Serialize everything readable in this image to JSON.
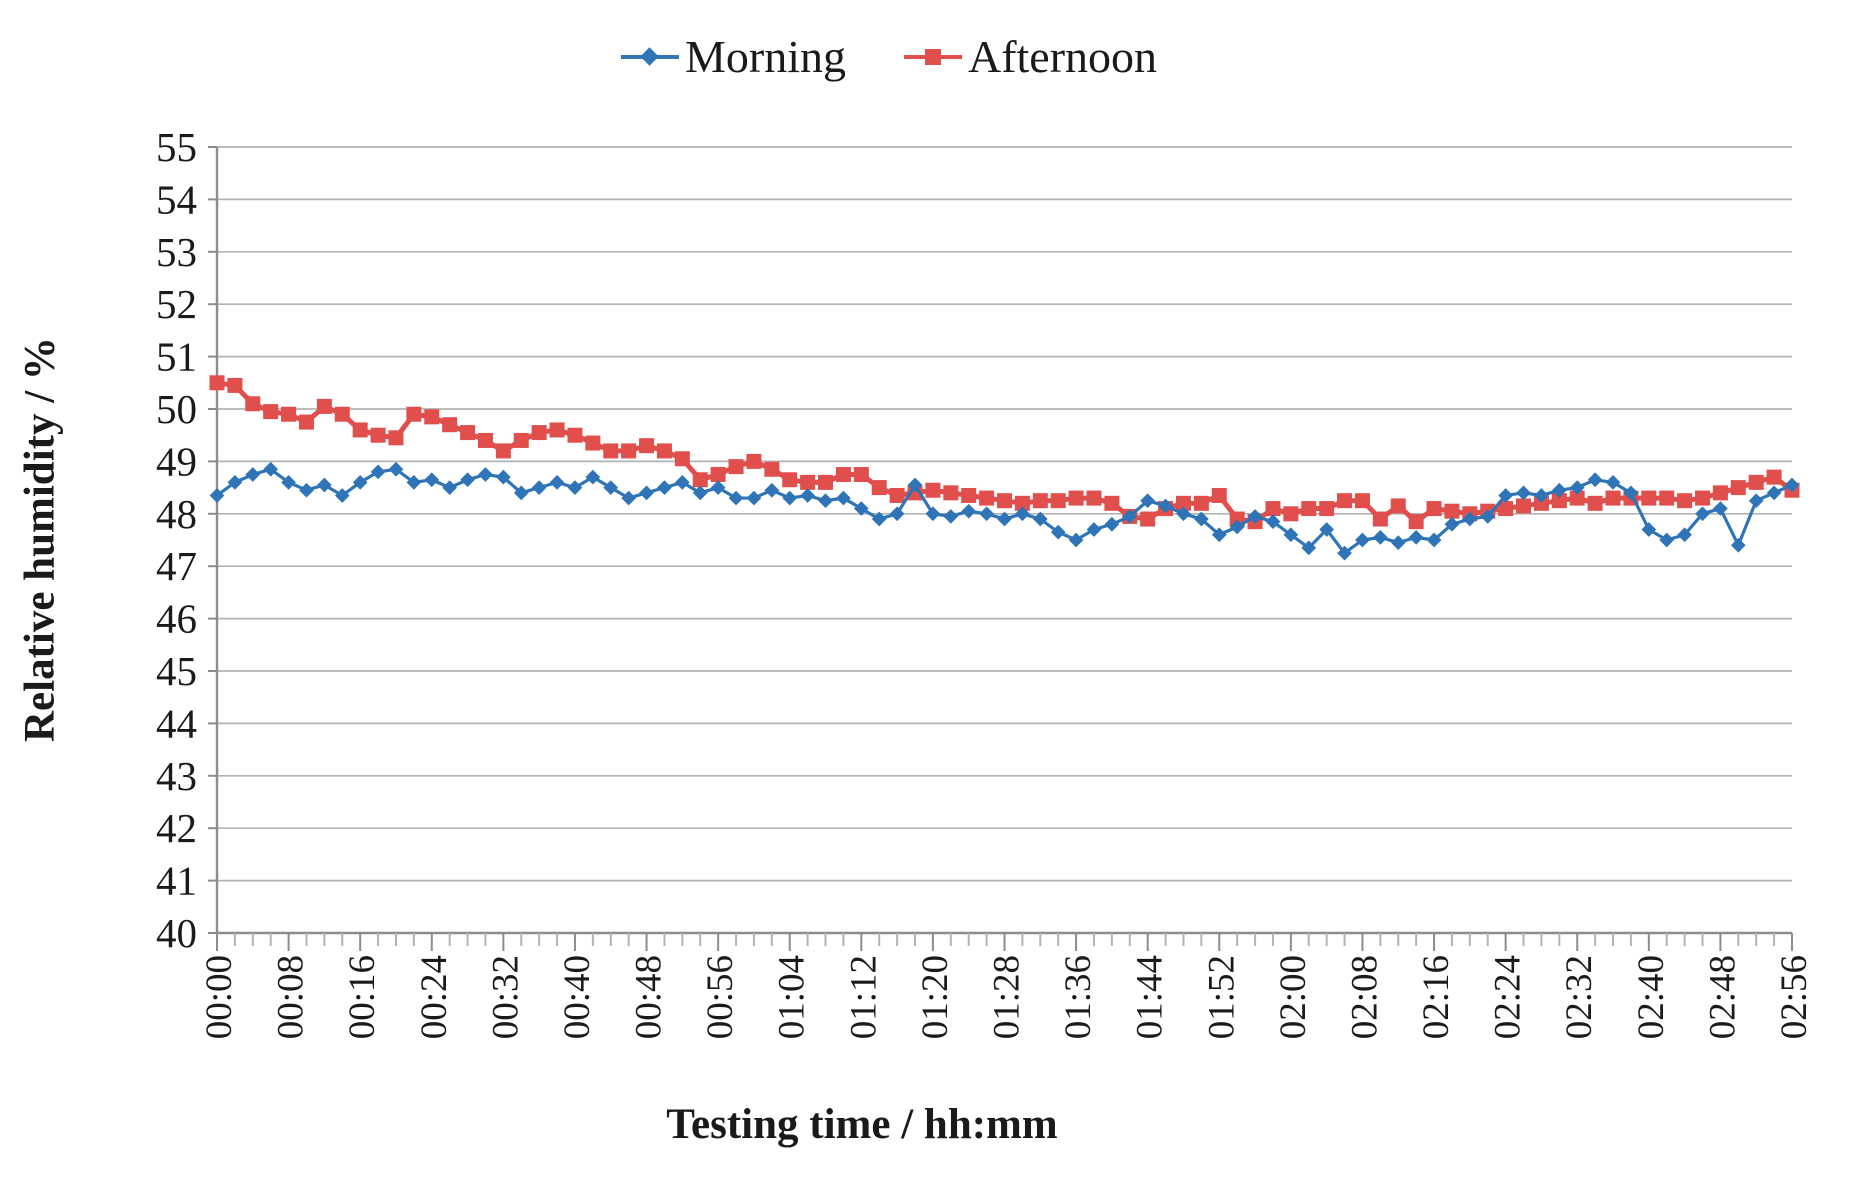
{
  "legend": {
    "items": [
      {
        "label": "Morning"
      },
      {
        "label": "Afternoon"
      }
    ]
  },
  "axes": {
    "x_title": "Testing time / hh:mm",
    "y_title": "Relative humidity / %"
  },
  "chart_data": {
    "type": "line",
    "title": "",
    "xlabel": "Testing time / hh:mm",
    "ylabel": "Relative humidity / %",
    "grid": "horizontal",
    "legend_position": "top-center",
    "ylim": [
      40,
      55
    ],
    "xlim_minutes": [
      0,
      176
    ],
    "y_ticks": [
      40,
      41,
      42,
      43,
      44,
      45,
      46,
      47,
      48,
      49,
      50,
      51,
      52,
      53,
      54,
      55
    ],
    "x_tick_interval_minutes": 8,
    "minor_tick_interval_minutes": 2,
    "x_tick_labels": [
      "00:00",
      "00:08",
      "00:16",
      "00:24",
      "00:32",
      "00:40",
      "00:48",
      "00:56",
      "01:04",
      "01:12",
      "01:20",
      "01:28",
      "01:36",
      "01:44",
      "01:52",
      "02:00",
      "02:08",
      "02:16",
      "02:24",
      "02:32",
      "02:40",
      "02:48",
      "02:56"
    ],
    "x_minutes": [
      0,
      2,
      4,
      6,
      8,
      10,
      12,
      14,
      16,
      18,
      20,
      22,
      24,
      26,
      28,
      30,
      32,
      34,
      36,
      38,
      40,
      42,
      44,
      46,
      48,
      50,
      52,
      54,
      56,
      58,
      60,
      62,
      64,
      66,
      68,
      70,
      72,
      74,
      76,
      78,
      80,
      82,
      84,
      86,
      88,
      90,
      92,
      94,
      96,
      98,
      100,
      102,
      104,
      106,
      108,
      110,
      112,
      114,
      116,
      118,
      120,
      122,
      124,
      126,
      128,
      130,
      132,
      134,
      136,
      138,
      140,
      142,
      144,
      146,
      148,
      150,
      152,
      154,
      156,
      158,
      160,
      162,
      164,
      166,
      168,
      170,
      172,
      174,
      176
    ],
    "series": [
      {
        "name": "Afternoon",
        "marker": "square",
        "color": "#e04f4c",
        "values": [
          50.5,
          50.45,
          50.1,
          49.95,
          49.9,
          49.75,
          50.05,
          49.9,
          49.6,
          49.5,
          49.45,
          49.9,
          49.85,
          49.7,
          49.55,
          49.4,
          49.2,
          49.4,
          49.55,
          49.6,
          49.5,
          49.35,
          49.2,
          49.2,
          49.3,
          49.2,
          49.05,
          48.65,
          48.75,
          48.9,
          49.0,
          48.85,
          48.65,
          48.6,
          48.6,
          48.75,
          48.75,
          48.5,
          48.35,
          48.4,
          48.45,
          48.4,
          48.35,
          48.3,
          48.25,
          48.2,
          48.25,
          48.25,
          48.3,
          48.3,
          48.2,
          47.95,
          47.9,
          48.1,
          48.2,
          48.2,
          48.35,
          47.9,
          47.85,
          48.1,
          48.0,
          48.1,
          48.1,
          48.25,
          48.25,
          47.9,
          48.15,
          47.85,
          48.1,
          48.05,
          48.0,
          48.05,
          48.1,
          48.15,
          48.2,
          48.25,
          48.3,
          48.2,
          48.3,
          48.3,
          48.3,
          48.3,
          48.25,
          48.3,
          48.4,
          48.5,
          48.6,
          48.7,
          48.45
        ]
      },
      {
        "name": "Morning",
        "marker": "diamond",
        "color": "#2e74b6",
        "values": [
          48.35,
          48.6,
          48.75,
          48.85,
          48.6,
          48.45,
          48.55,
          48.35,
          48.6,
          48.8,
          48.85,
          48.6,
          48.65,
          48.5,
          48.65,
          48.75,
          48.7,
          48.4,
          48.5,
          48.6,
          48.5,
          48.7,
          48.5,
          48.3,
          48.4,
          48.5,
          48.6,
          48.4,
          48.5,
          48.3,
          48.3,
          48.45,
          48.3,
          48.35,
          48.25,
          48.3,
          48.1,
          47.9,
          48.0,
          48.55,
          48.0,
          47.95,
          48.05,
          48.0,
          47.9,
          48.0,
          47.9,
          47.65,
          47.5,
          47.7,
          47.8,
          47.95,
          48.25,
          48.15,
          48.0,
          47.9,
          47.6,
          47.75,
          47.95,
          47.85,
          47.6,
          47.35,
          47.7,
          47.25,
          47.5,
          47.55,
          47.45,
          47.55,
          47.5,
          47.8,
          47.9,
          47.95,
          48.35,
          48.4,
          48.35,
          48.45,
          48.5,
          48.65,
          48.6,
          48.4,
          47.7,
          47.5,
          47.6,
          48.0,
          48.1,
          47.4,
          48.25,
          48.4,
          48.55
        ]
      }
    ],
    "style": {
      "gridline_color": "#b3b3b3",
      "axis_color": "#8c8c8c",
      "text_color": "#1a1a1a",
      "background": "#ffffff"
    }
  }
}
